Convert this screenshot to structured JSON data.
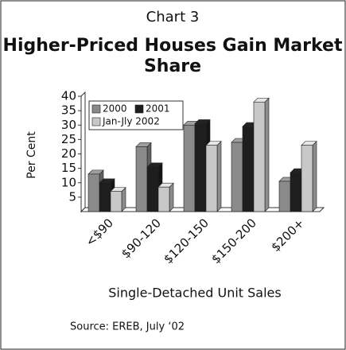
{
  "chart_data": {
    "type": "bar",
    "label": "Chart 3",
    "title": "Higher-Priced Houses Gain Market Share",
    "y_label": "Per Cent",
    "x_label": "Single-Detached Unit Sales",
    "source": "Source: EREB, July ‘02",
    "categories": [
      "<$90",
      "$90-120",
      "$120-150",
      "$150-200",
      "$200+"
    ],
    "series": [
      {
        "name": "2000",
        "color": "#8a8a8a",
        "values": [
          13,
          22.5,
          30,
          24,
          10.5
        ]
      },
      {
        "name": "2001",
        "color": "#1e1e1e",
        "values": [
          10,
          15.5,
          30.5,
          29.5,
          13.5
        ]
      },
      {
        "name": "Jan-Jly 2002",
        "color": "#c8c8c8",
        "values": [
          7,
          8.5,
          23,
          38,
          23
        ]
      }
    ],
    "ylim": [
      0,
      40
    ],
    "yticks": [
      5,
      10,
      15,
      20,
      25,
      30,
      35,
      40
    ],
    "legend": "top-left"
  }
}
